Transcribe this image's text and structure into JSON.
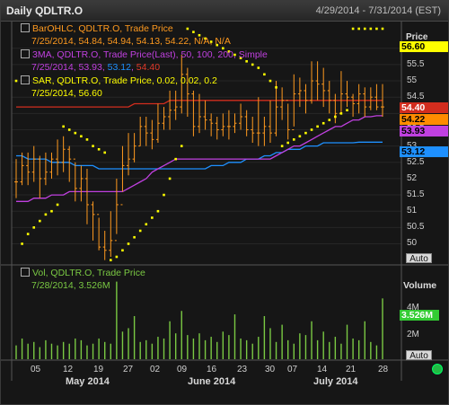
{
  "window": {
    "title": "Daily QDLTR.O",
    "date_range": "4/29/2014 - 7/31/2014 (EST)"
  },
  "legend": {
    "bar": {
      "line1": "BarOHLC, QDLTR.O, Trade Price",
      "line2": "7/25/2014, 54.84, 54.94, 54.13, 54.22, N/A, N/A"
    },
    "ma": {
      "line1": "3MA, QDLTR.O, Trade Price(Last), 50, 100, 200, Simple",
      "line2_a": "7/25/2014, ",
      "v1": "53.93",
      "v2": "53.12",
      "v3": "54.40"
    },
    "sar": {
      "line1": "SAR, QDLTR.O, Trade Price, 0.02, 0.02, 0.2",
      "line2": "7/25/2014, 56.60"
    },
    "vol": {
      "line1": "Vol, QDLTR.O, Trade Price",
      "line2": "7/28/2014, 3.526M"
    }
  },
  "price_axis": {
    "title": "Price",
    "labels": [
      "56",
      "55.5",
      "55",
      "54.5",
      "53.5",
      "53",
      "52.5",
      "52",
      "51.5",
      "51",
      "50.5",
      "50"
    ],
    "auto_label": "Auto"
  },
  "volume_axis": {
    "title": "Volume",
    "labels": [
      "4M",
      "2M"
    ],
    "auto_label": "Auto"
  },
  "price_tags": [
    {
      "value": "56.60",
      "bg": "#ffff00",
      "fg": "#000000"
    },
    {
      "value": "54.40",
      "bg": "#d22d1e",
      "fg": "#ffffff"
    },
    {
      "value": "54.22",
      "bg": "#ff8c00",
      "fg": "#000000"
    },
    {
      "value": "53.93",
      "bg": "#c040e0",
      "fg": "#000000"
    },
    {
      "value": "53.12",
      "bg": "#1e90ff",
      "fg": "#000000"
    }
  ],
  "volume_tag": {
    "value": "3.526M",
    "bg": "#33cc33",
    "fg": "#ffffff"
  },
  "x_axis": {
    "day_labels": [
      "05",
      "12",
      "19",
      "27",
      "02",
      "09",
      "16",
      "23",
      "30",
      "07",
      "14",
      "21",
      "28"
    ],
    "month_labels": [
      "May 2014",
      "June 2014",
      "July 2014"
    ]
  },
  "colors": {
    "bars": "#ff9a1f",
    "ma50": "#c040e0",
    "ma100": "#1e90ff",
    "ma200": "#d22d1e",
    "sar": "#ffff00",
    "volume": "#7ac943",
    "status": "#22bb44"
  },
  "chart_data": {
    "type": "bar",
    "ylim": [
      49.6,
      56.6
    ],
    "dates": [
      "4/29",
      "4/30",
      "5/1",
      "5/2",
      "5/5",
      "5/6",
      "5/7",
      "5/8",
      "5/9",
      "5/12",
      "5/13",
      "5/14",
      "5/15",
      "5/16",
      "5/19",
      "5/20",
      "5/21",
      "5/22",
      "5/23",
      "5/27",
      "5/28",
      "5/29",
      "5/30",
      "6/2",
      "6/3",
      "6/4",
      "6/5",
      "6/6",
      "6/9",
      "6/10",
      "6/11",
      "6/12",
      "6/13",
      "6/16",
      "6/17",
      "6/18",
      "6/19",
      "6/20",
      "6/23",
      "6/24",
      "6/25",
      "6/26",
      "6/27",
      "6/30",
      "7/1",
      "7/2",
      "7/3",
      "7/7",
      "7/8",
      "7/9",
      "7/10",
      "7/11",
      "7/14",
      "7/15",
      "7/16",
      "7/17",
      "7/18",
      "7/21",
      "7/22",
      "7/23",
      "7/24",
      "7/25",
      "7/28"
    ],
    "ohlc_close": [
      51.9,
      52.4,
      52.2,
      52.6,
      52.0,
      52.2,
      52.6,
      52.5,
      52.9,
      52.6,
      51.7,
      52.0,
      51.2,
      50.9,
      49.9,
      49.8,
      50.1,
      51.2,
      52.4,
      52.6,
      53.0,
      53.6,
      53.4,
      53.2,
      53.7,
      53.9,
      54.1,
      54.2,
      55.2,
      54.6,
      53.6,
      53.9,
      53.8,
      53.7,
      53.5,
      53.6,
      53.6,
      53.7,
      53.9,
      53.5,
      53.4,
      53.4,
      53.6,
      53.4,
      54.2,
      54.4,
      53.5,
      54.6,
      54.7,
      54.4,
      55.0,
      54.9,
      54.7,
      54.4,
      54.0,
      54.6,
      54.5,
      54.3,
      54.6,
      54.2,
      54.5,
      54.2,
      54.2
    ],
    "ohlc_high": [
      52.6,
      52.8,
      52.8,
      53.0,
      52.7,
      52.8,
      52.8,
      53.2,
      53.3,
      53.0,
      52.5,
      52.4,
      52.3,
      51.3,
      50.8,
      50.4,
      51.0,
      52.0,
      53.0,
      53.4,
      53.4,
      53.9,
      53.9,
      53.8,
      54.3,
      54.2,
      54.7,
      54.7,
      55.8,
      55.4,
      54.7,
      54.6,
      54.4,
      54.0,
      53.9,
      54.0,
      54.1,
      54.0,
      54.3,
      54.1,
      53.9,
      54.5,
      53.9,
      54.4,
      55.0,
      54.8,
      54.3,
      55.2,
      55.1,
      54.9,
      55.6,
      55.6,
      55.4,
      55.0,
      54.6,
      55.3,
      55.0,
      54.6,
      54.9,
      54.8,
      54.8,
      54.9,
      54.9
    ],
    "ohlc_low": [
      51.4,
      51.8,
      51.8,
      51.9,
      51.4,
      51.8,
      52.0,
      52.1,
      52.2,
      51.9,
      51.3,
      51.3,
      50.6,
      50.1,
      49.8,
      49.5,
      49.6,
      50.3,
      51.6,
      52.1,
      52.5,
      53.0,
      53.0,
      52.9,
      53.1,
      53.5,
      53.5,
      53.8,
      54.0,
      53.9,
      53.3,
      53.4,
      53.5,
      53.3,
      53.2,
      53.3,
      53.2,
      53.4,
      53.5,
      53.3,
      53.1,
      53.0,
      53.0,
      53.1,
      53.3,
      53.8,
      53.2,
      53.6,
      54.2,
      54.0,
      54.3,
      54.4,
      54.2,
      54.0,
      53.7,
      54.0,
      54.2,
      53.9,
      54.0,
      53.9,
      54.1,
      54.1,
      53.9
    ],
    "sar": [
      55.0,
      50.0,
      50.3,
      50.5,
      50.7,
      50.9,
      51.0,
      51.2,
      53.6,
      53.5,
      53.4,
      53.3,
      53.2,
      53.0,
      52.9,
      52.8,
      49.5,
      49.6,
      49.8,
      50.0,
      50.2,
      50.4,
      50.6,
      50.8,
      51.0,
      51.5,
      52.0,
      52.6,
      53.0,
      56.6,
      56.5,
      56.4,
      56.3,
      56.2,
      56.1,
      56.0,
      55.9,
      55.8,
      55.7,
      55.6,
      55.5,
      55.4,
      55.2,
      55.0,
      54.8,
      53.0,
      53.1,
      53.2,
      53.3,
      53.4,
      53.5,
      53.6,
      53.7,
      53.8,
      53.9,
      54.0,
      54.1,
      56.6,
      56.6,
      56.6,
      56.6,
      56.6,
      56.6
    ],
    "ma50": [
      51.3,
      51.3,
      51.3,
      51.4,
      51.4,
      51.4,
      51.5,
      51.5,
      51.5,
      51.6,
      51.6,
      51.6,
      51.6,
      51.6,
      51.6,
      51.6,
      51.6,
      51.6,
      51.6,
      51.7,
      51.8,
      51.9,
      52.0,
      52.2,
      52.3,
      52.4,
      52.5,
      52.6,
      52.6,
      52.6,
      52.6,
      52.6,
      52.6,
      52.6,
      52.6,
      52.6,
      52.6,
      52.6,
      52.6,
      52.6,
      52.6,
      52.6,
      52.6,
      52.6,
      52.7,
      52.8,
      52.9,
      53.0,
      53.0,
      53.1,
      53.2,
      53.3,
      53.4,
      53.5,
      53.6,
      53.6,
      53.7,
      53.8,
      53.8,
      53.9,
      53.9,
      53.93,
      53.93
    ],
    "ma100": [
      52.7,
      52.7,
      52.6,
      52.6,
      52.6,
      52.6,
      52.5,
      52.5,
      52.5,
      52.5,
      52.4,
      52.4,
      52.4,
      52.4,
      52.3,
      52.3,
      52.3,
      52.3,
      52.3,
      52.3,
      52.3,
      52.3,
      52.3,
      52.3,
      52.3,
      52.3,
      52.3,
      52.3,
      52.3,
      52.3,
      52.3,
      52.3,
      52.3,
      52.4,
      52.4,
      52.4,
      52.5,
      52.5,
      52.5,
      52.6,
      52.6,
      52.6,
      52.7,
      52.7,
      52.8,
      52.8,
      52.9,
      52.9,
      52.9,
      53.0,
      53.0,
      53.0,
      53.1,
      53.1,
      53.1,
      53.1,
      53.1,
      53.1,
      53.12,
      53.12,
      53.12,
      53.12,
      53.12
    ],
    "ma200": [
      54.2,
      54.2,
      54.2,
      54.2,
      54.2,
      54.2,
      54.2,
      54.2,
      54.2,
      54.2,
      54.2,
      54.2,
      54.2,
      54.2,
      54.2,
      54.2,
      54.2,
      54.2,
      54.2,
      54.2,
      54.3,
      54.3,
      54.3,
      54.3,
      54.3,
      54.3,
      54.4,
      54.4,
      54.4,
      54.4,
      54.4,
      54.4,
      54.4,
      54.4,
      54.4,
      54.4,
      54.4,
      54.4,
      54.4,
      54.4,
      54.4,
      54.4,
      54.4,
      54.4,
      54.4,
      54.4,
      54.4,
      54.4,
      54.4,
      54.4,
      54.4,
      54.4,
      54.4,
      54.4,
      54.4,
      54.4,
      54.4,
      54.4,
      54.4,
      54.4,
      54.4,
      54.4,
      54.4
    ],
    "volume_m": [
      0.8,
      1.2,
      0.9,
      1.0,
      0.7,
      1.1,
      0.9,
      0.8,
      1.0,
      0.9,
      1.2,
      1.1,
      0.8,
      0.9,
      1.2,
      1.0,
      0.9,
      4.5,
      1.6,
      1.8,
      2.5,
      1.0,
      1.1,
      0.9,
      1.3,
      1.2,
      2.2,
      1.5,
      2.8,
      1.4,
      1.2,
      1.5,
      1.1,
      1.3,
      1.0,
      1.6,
      1.4,
      2.6,
      1.2,
      1.1,
      0.9,
      1.3,
      2.5,
      1.8,
      1.0,
      2.0,
      1.1,
      0.9,
      1.5,
      1.4,
      2.2,
      1.1,
      1.6,
      1.0,
      1.3,
      0.9,
      2.0,
      1.2,
      1.1,
      2.2,
      1.0,
      0.8,
      3.526
    ],
    "volume_ylim": [
      0,
      5
    ]
  }
}
